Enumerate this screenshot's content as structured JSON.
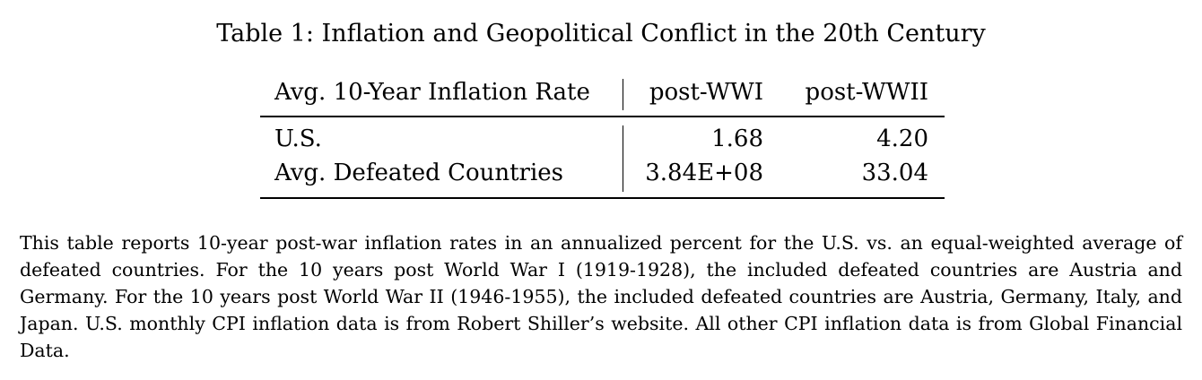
{
  "caption": "Table 1: Inflation and Geopolitical Conflict in the 20th Century",
  "table": {
    "header": {
      "row_label": "Avg. 10-Year Inflation Rate",
      "columns": [
        "post-WWI",
        "post-WWII"
      ]
    },
    "rows": [
      {
        "label": "U.S.",
        "values": [
          "1.68",
          "4.20"
        ]
      },
      {
        "label": "Avg. Defeated Countries",
        "values": [
          "3.84E+08",
          "33.04"
        ]
      }
    ]
  },
  "notes": "This table reports 10-year post-war inflation rates in an annualized percent for the U.S. vs. an equal-weighted average of defeated countries. For the 10 years post World War I (1919-1928), the included defeated countries are Austria and Germany. For the 10 years post World War II (1946-1955), the included defeated countries are Austria, Germany, Italy, and Japan. U.S. monthly CPI inflation data is from Robert Shiller’s website. All other CPI inflation data is from Global Financial Data."
}
